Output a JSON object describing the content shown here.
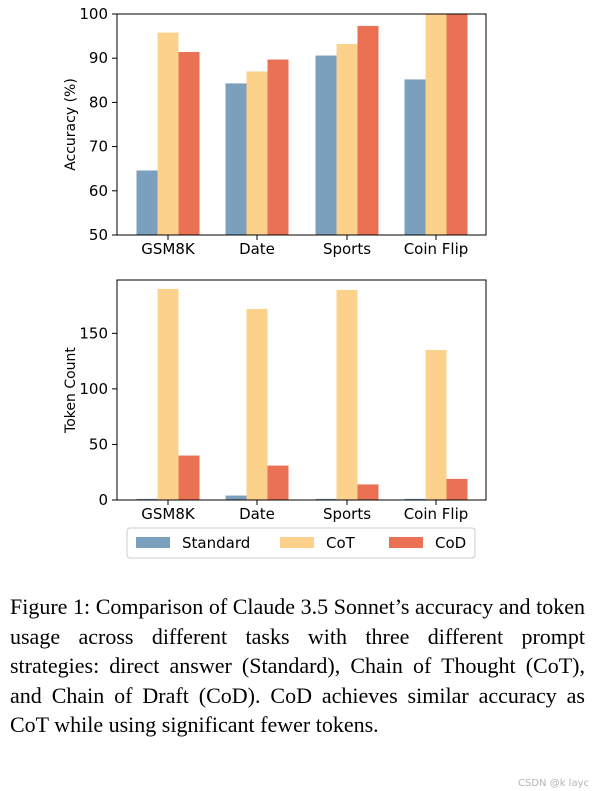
{
  "chart_data": [
    {
      "type": "bar",
      "ylabel": "Accuracy (%)",
      "ylim": [
        50,
        100
      ],
      "yticks": [
        50,
        60,
        70,
        80,
        90,
        100
      ],
      "categories": [
        "GSM8K",
        "Date",
        "Sports",
        "Coin Flip"
      ],
      "series": [
        {
          "name": "Standard",
          "color": "#7ba0bd",
          "values": [
            64.6,
            84.3,
            90.6,
            85.2
          ]
        },
        {
          "name": "CoT",
          "color": "#fcd18c",
          "values": [
            95.8,
            87.0,
            93.2,
            100
          ]
        },
        {
          "name": "CoD",
          "color": "#ea7154",
          "values": [
            91.4,
            89.7,
            97.3,
            100
          ]
        }
      ]
    },
    {
      "type": "bar",
      "ylabel": "Token Count",
      "ylim": [
        0,
        198
      ],
      "yticks": [
        0,
        50,
        100,
        150
      ],
      "categories": [
        "GSM8K",
        "Date",
        "Sports",
        "Coin Flip"
      ],
      "series": [
        {
          "name": "Standard",
          "color": "#7ba0bd",
          "values": [
            1,
            4,
            1,
            1
          ]
        },
        {
          "name": "CoT",
          "color": "#fcd18c",
          "values": [
            190,
            172,
            189,
            135
          ]
        },
        {
          "name": "CoD",
          "color": "#ea7154",
          "values": [
            40,
            31,
            14,
            19
          ]
        }
      ],
      "legend": {
        "placement": "bottom",
        "entries": [
          "Standard",
          "CoT",
          "CoD"
        ]
      }
    }
  ],
  "caption": "Figure 1: Comparison of Claude 3.5 Sonnet’s accuracy and token usage across different tasks with three different prompt strategies: direct answer (Standard), Chain of Thought (CoT), and Chain of Draft (CoD). CoD achieves similar accuracy as CoT while using significant fewer tokens.",
  "watermark": "CSDN @k layc"
}
